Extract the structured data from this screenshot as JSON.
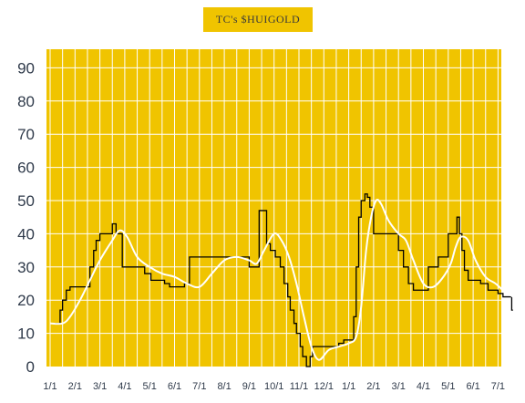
{
  "chart_data": {
    "type": "line",
    "title": "TC's $HUIGOLD",
    "xlabel": "",
    "ylabel": "",
    "ylim": [
      0,
      95
    ],
    "yticks": [
      0,
      10,
      20,
      30,
      40,
      50,
      60,
      70,
      80,
      90
    ],
    "xlim": [
      0,
      19
    ],
    "xticks": [
      "1/1",
      "2/1",
      "3/1",
      "4/1",
      "5/1",
      "6/1",
      "7/1",
      "8/1",
      "9/1",
      "10/1",
      "11/1",
      "12/1",
      "1/1",
      "2/1",
      "3/1",
      "4/1",
      "5/1",
      "6/1",
      "7/1"
    ],
    "grid": true,
    "legend": "none",
    "background": "#f0c400",
    "grid_color": "#ffffff",
    "series": [
      {
        "color": "#000000",
        "style": "step",
        "x": [
          0,
          0.4,
          0.5,
          0.65,
          0.8,
          1.0,
          1.6,
          1.75,
          1.85,
          2.0,
          2.15,
          2.3,
          2.5,
          2.65,
          2.9,
          3.1,
          3.3,
          3.6,
          3.8,
          4.05,
          4.2,
          4.4,
          4.6,
          4.8,
          5.0,
          5.4,
          5.6,
          5.8,
          6.2,
          6.5,
          7.0,
          7.5,
          8.0,
          8.4,
          8.7,
          8.85,
          9.05,
          9.25,
          9.4,
          9.55,
          9.65,
          9.8,
          9.9,
          10.05,
          10.15,
          10.3,
          10.45,
          10.55,
          10.65,
          10.75,
          10.9,
          11.1,
          11.4,
          11.6,
          11.8,
          12.1,
          12.2,
          12.3,
          12.4,
          12.5,
          12.65,
          12.75,
          12.85,
          13.0,
          13.2,
          13.4,
          13.7,
          14.0,
          14.2,
          14.4,
          14.6,
          14.8,
          15.2,
          15.6,
          16.0,
          16.35,
          16.45,
          16.55,
          16.65,
          16.8,
          16.9,
          17.1,
          17.3,
          17.6,
          18.0,
          18.2,
          18.45,
          18.55,
          18.6
        ],
        "y": [
          13,
          17,
          20,
          23,
          24,
          24,
          30,
          35,
          38,
          40,
          40,
          40,
          43,
          40,
          30,
          30,
          30,
          30,
          28,
          26,
          26,
          26,
          25,
          24,
          24,
          25,
          33,
          33,
          33,
          33,
          33,
          33,
          30,
          47,
          37,
          35,
          33,
          30,
          25,
          21,
          17,
          13,
          10,
          6,
          3,
          0,
          3,
          6,
          6,
          6,
          6,
          6,
          6,
          7,
          8,
          8,
          15,
          30,
          45,
          50,
          52,
          51,
          48,
          40,
          40,
          40,
          40,
          35,
          30,
          25,
          23,
          23,
          30,
          33,
          40,
          45,
          40,
          35,
          29,
          26,
          26,
          26,
          25,
          23,
          22,
          21,
          21,
          17,
          17
        ]
      },
      {
        "color": "#ffffff",
        "style": "smooth",
        "x": [
          0,
          0.5,
          0.8,
          1.2,
          1.6,
          2.0,
          2.5,
          2.8,
          3.1,
          3.5,
          4.0,
          4.5,
          5.0,
          5.5,
          6.0,
          6.5,
          7.0,
          7.5,
          8.0,
          8.3,
          8.6,
          9.0,
          9.3,
          9.6,
          9.9,
          10.2,
          10.5,
          10.8,
          11.2,
          11.6,
          12.0,
          12.3,
          12.5,
          12.7,
          12.9,
          13.1,
          13.3,
          13.6,
          14.0,
          14.3,
          14.6,
          15.0,
          15.4,
          15.8,
          16.1,
          16.3,
          16.5,
          16.8,
          17.1,
          17.5,
          17.9,
          18.2,
          18.6
        ],
        "y": [
          13,
          13,
          15,
          20,
          26,
          32,
          38,
          41,
          39,
          33,
          30,
          28,
          27,
          25,
          24,
          28,
          32,
          33,
          32,
          31,
          35,
          40,
          38,
          33,
          25,
          15,
          6,
          2,
          5,
          6,
          7,
          9,
          18,
          35,
          45,
          50,
          49,
          44,
          40,
          38,
          32,
          25,
          24,
          27,
          31,
          36,
          39,
          38,
          32,
          27,
          25,
          23,
          21
        ]
      }
    ]
  }
}
